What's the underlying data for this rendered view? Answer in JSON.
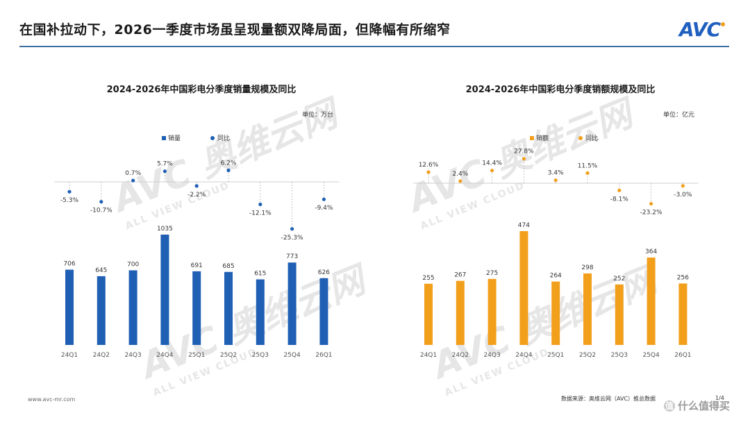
{
  "page": {
    "headline": "在国补拉动下，2026一季度市场虽呈现量额双降局面，但降幅有所缩窄",
    "logo": "AVC",
    "watermark_main": "AVC 奥维云网",
    "watermark_sub": "ALL VIEW CLOUD",
    "footer_left": "www.avc-mr.com",
    "footer_source": "数据来源：奥维云网（AVC）推总数据",
    "page_number": "1/4",
    "corner_mark": "什么值得买",
    "corner_icon": "值"
  },
  "chart_data": [
    {
      "type": "bar",
      "title": "2024-2026年中国彩电分季度销量规模及同比",
      "unit": "单位：万台",
      "categories": [
        "24Q1",
        "24Q2",
        "24Q3",
        "24Q4",
        "25Q1",
        "25Q2",
        "25Q3",
        "25Q4",
        "26Q1"
      ],
      "series": [
        {
          "name": "销量",
          "values": [
            706,
            645,
            700,
            1035,
            691,
            685,
            615,
            773,
            626
          ],
          "color": "#1f5fb4"
        }
      ],
      "yoy": {
        "name": "同比",
        "values": [
          -5.3,
          -10.7,
          0.7,
          5.7,
          -2.2,
          6.2,
          -12.1,
          -25.3,
          -9.4
        ],
        "labels": [
          "-5.3%",
          "-10.7%",
          "0.7%",
          "5.7%",
          "-2.2%",
          "6.2%",
          "-12.1%",
          "-25.3%",
          "-9.4%"
        ],
        "color": "#1f5fb4"
      },
      "legend": [
        "销量",
        "同比"
      ],
      "legend_position": "top"
    },
    {
      "type": "bar",
      "title": "2024-2026年中国彩电分季度销额规模及同比",
      "unit": "单位：亿元",
      "categories": [
        "24Q1",
        "24Q2",
        "24Q3",
        "24Q4",
        "25Q1",
        "25Q2",
        "25Q3",
        "25Q4",
        "26Q1"
      ],
      "series": [
        {
          "name": "销额",
          "values": [
            255,
            267,
            275,
            474,
            264,
            298,
            252,
            364,
            256
          ],
          "color": "#f29f1c"
        }
      ],
      "yoy": {
        "name": "同比",
        "values": [
          12.6,
          2.4,
          14.4,
          27.8,
          3.4,
          11.5,
          -8.1,
          -23.2,
          -3.0
        ],
        "labels": [
          "12.6%",
          "2.4%",
          "14.4%",
          "27.8%",
          "3.4%",
          "11.5%",
          "-8.1%",
          "-23.2%",
          "-3.0%"
        ],
        "color": "#f29f1c"
      },
      "legend": [
        "销额",
        "同比"
      ],
      "legend_position": "top"
    }
  ]
}
